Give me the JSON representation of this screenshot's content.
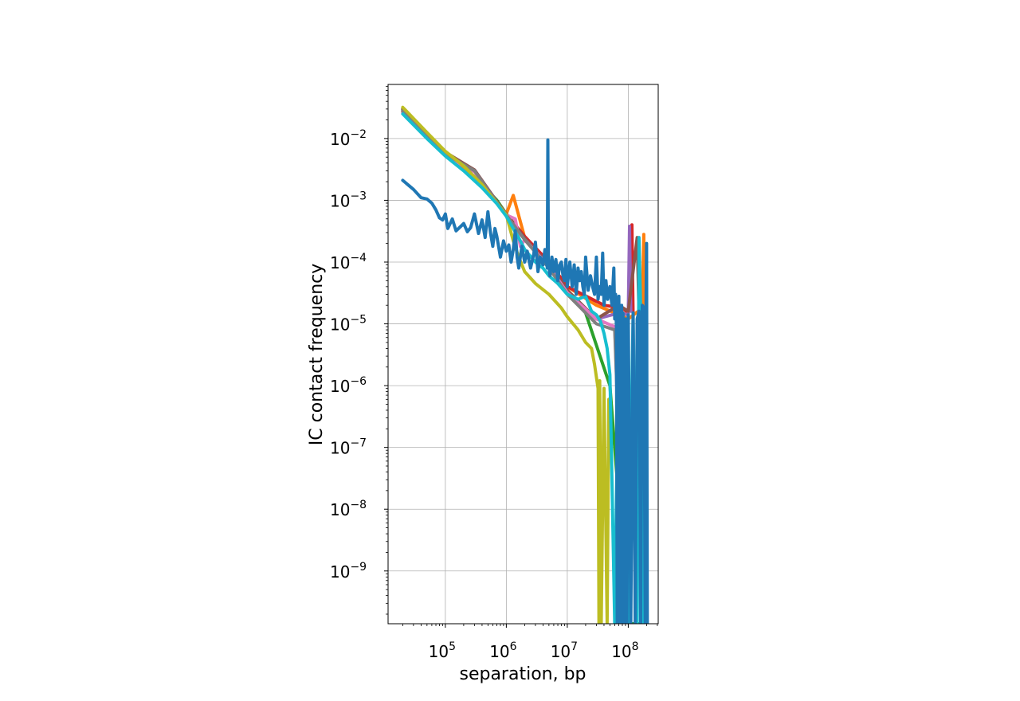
{
  "chart_data": {
    "type": "line",
    "title": "",
    "xlabel": "separation, bp",
    "ylabel": "IC contact frequency",
    "xscale": "log",
    "yscale": "log",
    "xlim": [
      11500,
      310000000
    ],
    "ylim": [
      1.4e-10,
      0.075
    ],
    "grid": true,
    "legend": "none",
    "x_ticks": [
      {
        "base": "10",
        "exp": "5",
        "value": 100000
      },
      {
        "base": "10",
        "exp": "6",
        "value": 1000000
      },
      {
        "base": "10",
        "exp": "7",
        "value": 10000000
      },
      {
        "base": "10",
        "exp": "8",
        "value": 100000000
      }
    ],
    "y_ticks": [
      {
        "base": "10",
        "exp": "−2",
        "value": 0.01
      },
      {
        "base": "10",
        "exp": "−3",
        "value": 0.001
      },
      {
        "base": "10",
        "exp": "−4",
        "value": 0.0001
      },
      {
        "base": "10",
        "exp": "−5",
        "value": 1e-05
      },
      {
        "base": "10",
        "exp": "−6",
        "value": 1e-06
      },
      {
        "base": "10",
        "exp": "−7",
        "value": 1e-07
      },
      {
        "base": "10",
        "exp": "−8",
        "value": 1e-08
      },
      {
        "base": "10",
        "exp": "−9",
        "value": 1e-09
      }
    ],
    "series": [
      {
        "color": "#2ca02c",
        "x": [
          20000,
          50000,
          100000,
          200000,
          400000,
          700000,
          1000000,
          2000000,
          3000000,
          5000000,
          10000000,
          20000000,
          30000000,
          50000000,
          100000000,
          150000000
        ],
        "y": [
          0.03,
          0.012,
          0.006,
          0.0035,
          0.0018,
          0.001,
          0.0006,
          0.00025,
          0.00015,
          9e-05,
          3.5e-05,
          1.5e-05,
          4.5e-06,
          1e-06,
          1.4e-10,
          1.4e-10
        ]
      },
      {
        "color": "#ff7f0e",
        "x": [
          20000,
          50000,
          100000,
          200000,
          400000,
          700000,
          1000000,
          1300000,
          2000000,
          5000000,
          10000000,
          30000000,
          60000000,
          100000000,
          170000000,
          180000000,
          190000000
        ],
        "y": [
          0.028,
          0.011,
          0.0055,
          0.0033,
          0.0017,
          0.0009,
          0.0006,
          0.0012,
          0.00025,
          0.0001,
          4e-05,
          2e-05,
          1.5e-05,
          1.2e-05,
          1.8e-05,
          0.00028,
          1.4e-10
        ]
      },
      {
        "color": "#d62728",
        "x": [
          20000,
          50000,
          100000,
          300000,
          700000,
          1000000,
          2000000,
          5000000,
          10000000,
          40000000,
          80000000,
          100000000,
          115000000,
          120000000
        ],
        "y": [
          0.027,
          0.011,
          0.0055,
          0.003,
          0.0009,
          0.0006,
          0.00026,
          0.0001,
          4e-05,
          2e-05,
          1.8e-05,
          1.5e-05,
          0.0004,
          1.4e-05
        ]
      },
      {
        "color": "#9467bd",
        "x": [
          20000,
          50000,
          100000,
          300000,
          700000,
          1000000,
          2000000,
          5000000,
          10000000,
          30000000,
          70000000,
          100000000,
          105000000,
          110000000
        ],
        "y": [
          0.029,
          0.0115,
          0.0058,
          0.0031,
          0.00095,
          0.00058,
          0.00024,
          9e-05,
          3e-05,
          1.2e-05,
          1.5e-05,
          1.4e-05,
          0.00038,
          1.6e-05
        ]
      },
      {
        "color": "#8c564b",
        "x": [
          20000,
          50000,
          100000,
          300000,
          700000,
          1000000,
          2000000,
          5000000,
          10000000,
          30000000,
          70000000,
          100000000,
          140000000,
          150000000
        ],
        "y": [
          0.03,
          0.012,
          0.006,
          0.0031,
          0.00095,
          0.0006,
          0.00024,
          9e-05,
          3.5e-05,
          1.2e-05,
          2e-05,
          1.6e-05,
          0.00025,
          1.4e-05
        ]
      },
      {
        "color": "#e377c2",
        "x": [
          20000,
          50000,
          100000,
          300000,
          700000,
          1000000,
          1400000,
          1700000,
          2000000,
          5000000,
          10000000,
          30000000,
          60000000,
          90000000
        ],
        "y": [
          0.026,
          0.0105,
          0.0053,
          0.0029,
          0.0009,
          0.00058,
          0.0005,
          0.00018,
          0.00023,
          8.5e-05,
          3.2e-05,
          1.2e-05,
          9e-06,
          1.4e-10
        ]
      },
      {
        "color": "#7f7f7f",
        "x": [
          20000,
          50000,
          100000,
          300000,
          700000,
          1000000,
          2000000,
          5000000,
          10000000,
          30000000,
          60000000,
          90000000
        ],
        "y": [
          0.028,
          0.011,
          0.0056,
          0.003,
          0.00092,
          0.00058,
          0.00023,
          8e-05,
          3e-05,
          1e-05,
          8e-06,
          1.4e-10
        ]
      },
      {
        "color": "#bcbd22",
        "x": [
          20000,
          50000,
          100000,
          200000,
          400000,
          700000,
          1000000,
          1300000,
          1600000,
          2000000,
          3000000,
          5000000,
          8000000,
          10000000,
          15000000,
          20000000,
          25000000,
          28000000,
          32000000,
          33000000,
          34000000,
          36000000,
          40000000,
          45000000,
          48000000
        ],
        "y": [
          0.032,
          0.0125,
          0.0062,
          0.0036,
          0.0018,
          0.0009,
          0.00058,
          0.00022,
          0.00012,
          7e-05,
          4.5e-05,
          3e-05,
          1.8e-05,
          1.3e-05,
          8e-06,
          5e-06,
          4e-06,
          2.2e-06,
          9e-07,
          1.4e-10,
          1.2e-06,
          1.4e-10,
          9e-07,
          1.4e-10,
          6e-07
        ]
      },
      {
        "color": "#17becf",
        "x": [
          20000,
          50000,
          100000,
          200000,
          400000,
          700000,
          1000000,
          1300000,
          1700000,
          2000000,
          3000000,
          4000000,
          5000000,
          7000000,
          10000000,
          15000000,
          20000000,
          25000000,
          30000000,
          35000000,
          40000000,
          45000000,
          50000000,
          60000000,
          70000000,
          80000000,
          90000000,
          100000000,
          120000000,
          140000000,
          150000000,
          160000000,
          180000000
        ],
        "y": [
          0.025,
          0.01,
          0.0052,
          0.003,
          0.0016,
          0.00088,
          0.00055,
          0.00035,
          0.00022,
          0.00016,
          0.0001,
          8e-05,
          6e-05,
          4.5e-05,
          3e-05,
          2.5e-05,
          2.8e-05,
          1.6e-05,
          1.4e-05,
          1.1e-05,
          7e-06,
          4e-06,
          1.5e-06,
          1.4e-10,
          1.2e-05,
          1.4e-10,
          9e-06,
          1.4e-10,
          1.5e-05,
          1.4e-10,
          0.00025,
          1.6e-05,
          1.4e-10
        ]
      },
      {
        "color": "#1f77b4",
        "x": [
          20000,
          30000,
          40000,
          50000,
          60000,
          70000,
          80000,
          90000,
          100000,
          110000,
          130000,
          150000,
          180000,
          200000,
          230000,
          260000,
          300000,
          350000,
          400000,
          450000,
          500000,
          550000,
          600000,
          650000,
          700000,
          800000,
          900000,
          1000000,
          1100000,
          1200000,
          1300000,
          1400000,
          1500000,
          1600000,
          1800000,
          2000000,
          2200000,
          2500000,
          2800000,
          3000000,
          3300000,
          3600000,
          4000000,
          4300000,
          4700000,
          4800000,
          4900000,
          5200000,
          5600000,
          6000000,
          6500000,
          7000000,
          7500000,
          8000000,
          8500000,
          9000000,
          9500000,
          10000000,
          11000000,
          12000000,
          13000000,
          14000000,
          15000000,
          16000000,
          17000000,
          18000000,
          19000000,
          20000000,
          22000000,
          24000000,
          26000000,
          28000000,
          30000000,
          32000000,
          34000000,
          36000000,
          38000000,
          40000000,
          43000000,
          46000000,
          50000000,
          54000000,
          58000000,
          60000000,
          62000000,
          64000000,
          66000000,
          68000000,
          70000000,
          74000000,
          78000000,
          80000000,
          82000000,
          86000000,
          90000000,
          95000000,
          100000000,
          110000000,
          120000000,
          130000000,
          140000000,
          150000000,
          160000000,
          170000000,
          180000000,
          190000000,
          195000000,
          200000000,
          205000000
        ],
        "y": [
          0.0021,
          0.0015,
          0.0011,
          0.00105,
          0.0009,
          0.0007,
          0.00052,
          0.00048,
          0.0006,
          0.00035,
          0.0005,
          0.00032,
          0.00038,
          0.00042,
          0.00031,
          0.00036,
          0.0006,
          0.00029,
          0.00048,
          0.00025,
          0.00065,
          0.0003,
          0.00018,
          0.00035,
          0.00026,
          0.00012,
          0.00022,
          0.00015,
          0.00019,
          0.0001,
          0.00016,
          0.00032,
          0.00012,
          8e-05,
          0.00018,
          0.0001,
          0.00015,
          8e-05,
          0.00013,
          0.00021,
          7e-05,
          0.00012,
          9e-05,
          0.00016,
          8e-05,
          0.0095,
          0.0001,
          6e-05,
          0.00012,
          7e-05,
          0.00011,
          5e-05,
          9e-05,
          0.0001,
          6e-05,
          5e-05,
          0.00011,
          4e-05,
          0.0001,
          4e-05,
          9e-05,
          3e-05,
          8e-05,
          5e-05,
          7e-05,
          4e-05,
          3e-05,
          0.00012,
          3.5e-05,
          6e-05,
          4e-05,
          3e-05,
          0.00012,
          2.5e-05,
          4e-05,
          3e-05,
          0.00014,
          2e-05,
          5e-05,
          2.5e-05,
          4e-05,
          2e-05,
          8e-05,
          1.2e-05,
          3e-05,
          8e-06,
          1.4e-10,
          1.5e-05,
          2.8e-05,
          1.4e-10,
          2e-05,
          1.4e-10,
          1.5e-05,
          1.4e-10,
          1.2e-05,
          1.4e-10,
          1.4e-05,
          1.4e-10,
          1.5e-05,
          1.4e-10,
          1.2e-05,
          1.6e-05,
          1.4e-10,
          2e-05,
          1.8e-05,
          1.4e-10,
          1.5e-05,
          0.0002,
          1.4e-10
        ]
      }
    ]
  }
}
